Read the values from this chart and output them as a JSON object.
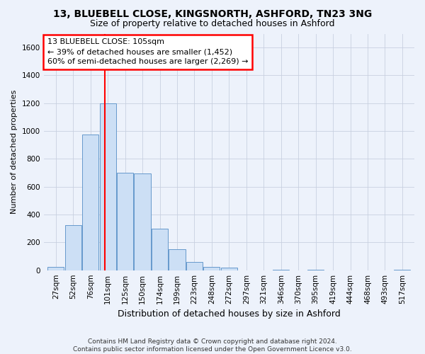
{
  "title1": "13, BLUEBELL CLOSE, KINGSNORTH, ASHFORD, TN23 3NG",
  "title2": "Size of property relative to detached houses in Ashford",
  "xlabel": "Distribution of detached houses by size in Ashford",
  "ylabel": "Number of detached properties",
  "footnote": "Contains HM Land Registry data © Crown copyright and database right 2024.\nContains public sector information licensed under the Open Government Licence v3.0.",
  "bar_color": "#ccdff5",
  "bar_edge_color": "#6699cc",
  "categories": [
    "27sqm",
    "52sqm",
    "76sqm",
    "101sqm",
    "125sqm",
    "150sqm",
    "174sqm",
    "199sqm",
    "223sqm",
    "248sqm",
    "272sqm",
    "297sqm",
    "321sqm",
    "346sqm",
    "370sqm",
    "395sqm",
    "419sqm",
    "444sqm",
    "468sqm",
    "493sqm",
    "517sqm"
  ],
  "values": [
    25,
    325,
    975,
    1200,
    700,
    695,
    300,
    150,
    60,
    25,
    20,
    0,
    0,
    5,
    0,
    5,
    0,
    0,
    0,
    0,
    5
  ],
  "ylim": [
    0,
    1700
  ],
  "yticks": [
    0,
    200,
    400,
    600,
    800,
    1000,
    1200,
    1400,
    1600
  ],
  "property_bin_index": 3,
  "vline_x_offset": -0.15,
  "annotation_text": "13 BLUEBELL CLOSE: 105sqm\n← 39% of detached houses are smaller (1,452)\n60% of semi-detached houses are larger (2,269) →",
  "annotation_box_color": "white",
  "annotation_box_edge_color": "red",
  "vline_color": "red",
  "grid_color": "#c8d0e0",
  "background_color": "#edf2fb",
  "title1_fontsize": 10,
  "title2_fontsize": 9,
  "xlabel_fontsize": 9,
  "ylabel_fontsize": 8,
  "footnote_fontsize": 6.5,
  "tick_fontsize": 7.5,
  "annotation_fontsize": 8
}
